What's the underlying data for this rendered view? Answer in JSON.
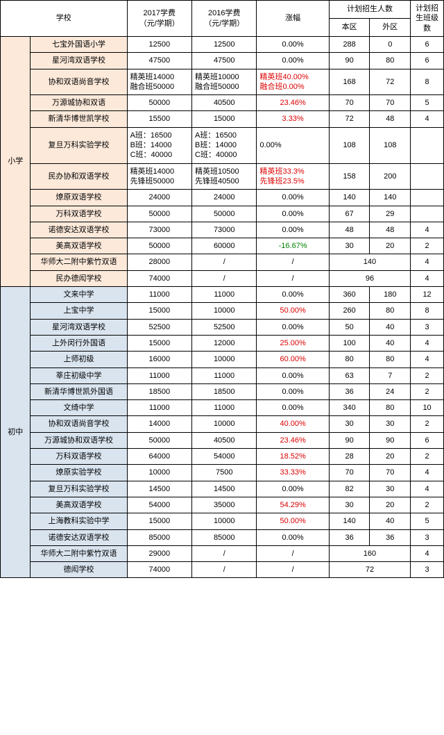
{
  "header": {
    "school": "学校",
    "fee2017": "2017学费\n（元/学期）",
    "fee2016": "2016学费\n（元/学期）",
    "increase": "涨幅",
    "enrollGroup": "计划招生人数",
    "enrollLocal": "本区",
    "enrollOther": "外区",
    "classes": "计划招生班级数"
  },
  "sectionA": "小学",
  "sectionB": "初中",
  "colors": {
    "peach": "#fce9da",
    "blue": "#d9e4ef",
    "red": "#dc0000",
    "green": "#008000"
  },
  "primary": [
    {
      "name": "七宝外国语小学",
      "fee17": "12500",
      "fee16": "12500",
      "inc": "0.00%",
      "incColor": "",
      "local": "288",
      "other": "0",
      "cls": "6"
    },
    {
      "name": "星河湾双语学校",
      "fee17": "47500",
      "fee16": "47500",
      "inc": "0.00%",
      "incColor": "",
      "local": "90",
      "other": "80",
      "cls": "6"
    },
    {
      "name": "协和双语尚音学校",
      "fee17": "精英班14000\n融合班50000",
      "fee16": "精英班10000\n融合班50000",
      "inc": "精英班40.00%\n融合班0.00%",
      "incColor": "red",
      "local": "168",
      "other": "72",
      "cls": "8",
      "ml": true
    },
    {
      "name": "万源城协和双语",
      "fee17": "50000",
      "fee16": "40500",
      "inc": "23.46%",
      "incColor": "red",
      "local": "70",
      "other": "70",
      "cls": "5"
    },
    {
      "name": "新清华博世凯学校",
      "fee17": "15500",
      "fee16": "15000",
      "inc": "3.33%",
      "incColor": "red",
      "local": "72",
      "other": "48",
      "cls": "4"
    },
    {
      "name": "复旦万科实验学校",
      "fee17": "A班：16500\nB班：14000\nC班：40000",
      "fee16": "A班：16500\nB班：14000\nC班：40000",
      "inc": "0.00%",
      "incColor": "",
      "local": "108",
      "other": "108",
      "cls": "",
      "ml": true
    },
    {
      "name": "民办协和双语学校",
      "fee17": "精英班14000\n先锋班50000",
      "fee16": "精英班10500\n先锋班40500",
      "inc": "精英班33.3%\n先锋班23.5%",
      "incColor": "red",
      "local": "158",
      "other": "200",
      "cls": "",
      "ml": true
    },
    {
      "name": "燎原双语学校",
      "fee17": "24000",
      "fee16": "24000",
      "inc": "0.00%",
      "incColor": "",
      "local": "140",
      "other": "140",
      "cls": ""
    },
    {
      "name": "万科双语学校",
      "fee17": "50000",
      "fee16": "50000",
      "inc": "0.00%",
      "incColor": "",
      "local": "67",
      "other": "29",
      "cls": ""
    },
    {
      "name": "诺德安达双语学校",
      "fee17": "73000",
      "fee16": "73000",
      "inc": "0.00%",
      "incColor": "",
      "local": "48",
      "other": "48",
      "cls": "4"
    },
    {
      "name": "美高双语学校",
      "fee17": "50000",
      "fee16": "60000",
      "inc": "-16.67%",
      "incColor": "green",
      "local": "30",
      "other": "20",
      "cls": "2"
    },
    {
      "name": "华师大二附中紫竹双语",
      "fee17": "28000",
      "fee16": "/",
      "inc": "/",
      "incColor": "",
      "merged": "140",
      "cls": "4"
    },
    {
      "name": "民办德闳学校",
      "fee17": "74000",
      "fee16": "/",
      "inc": "/",
      "incColor": "",
      "merged": "96",
      "cls": "4"
    }
  ],
  "middle": [
    {
      "name": "文来中学",
      "fee17": "11000",
      "fee16": "11000",
      "inc": "0.00%",
      "incColor": "",
      "local": "360",
      "other": "180",
      "cls": "12"
    },
    {
      "name": "上宝中学",
      "fee17": "15000",
      "fee16": "10000",
      "inc": "50.00%",
      "incColor": "red",
      "local": "260",
      "other": "80",
      "cls": "8"
    },
    {
      "name": "星河湾双语学校",
      "fee17": "52500",
      "fee16": "52500",
      "inc": "0.00%",
      "incColor": "",
      "local": "50",
      "other": "40",
      "cls": "3"
    },
    {
      "name": "上外闵行外国语",
      "fee17": "15000",
      "fee16": "12000",
      "inc": "25.00%",
      "incColor": "red",
      "local": "100",
      "other": "40",
      "cls": "4"
    },
    {
      "name": "上师初级",
      "fee17": "16000",
      "fee16": "10000",
      "inc": "60.00%",
      "incColor": "red",
      "local": "80",
      "other": "80",
      "cls": "4"
    },
    {
      "name": "莘庄初级中学",
      "fee17": "11000",
      "fee16": "11000",
      "inc": "0.00%",
      "incColor": "",
      "local": "63",
      "other": "7",
      "cls": "2"
    },
    {
      "name": "新清华博世凯外国语",
      "fee17": "18500",
      "fee16": "18500",
      "inc": "0.00%",
      "incColor": "",
      "local": "36",
      "other": "24",
      "cls": "2"
    },
    {
      "name": "文绮中学",
      "fee17": "11000",
      "fee16": "11000",
      "inc": "0.00%",
      "incColor": "",
      "local": "340",
      "other": "80",
      "cls": "10"
    },
    {
      "name": "协和双语尚音学校",
      "fee17": "14000",
      "fee16": "10000",
      "inc": "40.00%",
      "incColor": "red",
      "local": "30",
      "other": "30",
      "cls": "2"
    },
    {
      "name": "万源城协和双语学校",
      "fee17": "50000",
      "fee16": "40500",
      "inc": "23.46%",
      "incColor": "red",
      "local": "90",
      "other": "90",
      "cls": "6"
    },
    {
      "name": "万科双语学校",
      "fee17": "64000",
      "fee16": "54000",
      "inc": "18.52%",
      "incColor": "red",
      "local": "28",
      "other": "20",
      "cls": "2"
    },
    {
      "name": "燎原实验学校",
      "fee17": "10000",
      "fee16": "7500",
      "inc": "33.33%",
      "incColor": "red",
      "local": "70",
      "other": "70",
      "cls": "4"
    },
    {
      "name": "复旦万科实验学校",
      "fee17": "14500",
      "fee16": "14500",
      "inc": "0.00%",
      "incColor": "",
      "local": "82",
      "other": "30",
      "cls": "4"
    },
    {
      "name": "美高双语学校",
      "fee17": "54000",
      "fee16": "35000",
      "inc": "54.29%",
      "incColor": "red",
      "local": "30",
      "other": "20",
      "cls": "2"
    },
    {
      "name": "上海教科实验中学",
      "fee17": "15000",
      "fee16": "10000",
      "inc": "50.00%",
      "incColor": "red",
      "local": "140",
      "other": "40",
      "cls": "5"
    },
    {
      "name": "诺德安达双语学校",
      "fee17": "85000",
      "fee16": "85000",
      "inc": "0.00%",
      "incColor": "",
      "local": "36",
      "other": "36",
      "cls": "3"
    },
    {
      "name": "华师大二附中紫竹双语",
      "fee17": "29000",
      "fee16": "/",
      "inc": "/",
      "incColor": "",
      "merged": "160",
      "cls": "4"
    },
    {
      "name": "德闳学校",
      "fee17": "74000",
      "fee16": "/",
      "inc": "/",
      "incColor": "",
      "merged": "72",
      "cls": "3"
    }
  ]
}
